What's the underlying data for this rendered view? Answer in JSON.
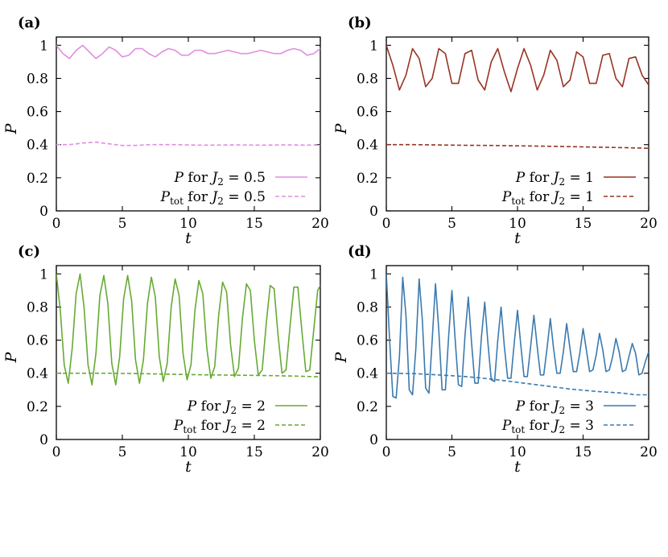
{
  "figure": {
    "panels": [
      {
        "label": "(a)",
        "legend": [
          {
            "symbol": "P",
            "sub": "",
            "text_for": "for",
            "param": "J",
            "param_sub": "2",
            "equals": "= 0.5"
          },
          {
            "symbol": "P",
            "sub": "tot",
            "text_for": "for",
            "param": "J",
            "param_sub": "2",
            "equals": "= 0.5"
          }
        ]
      },
      {
        "label": "(b)",
        "legend": [
          {
            "symbol": "P",
            "sub": "",
            "text_for": "for",
            "param": "J",
            "param_sub": "2",
            "equals": "= 1"
          },
          {
            "symbol": "P",
            "sub": "tot",
            "text_for": "for",
            "param": "J",
            "param_sub": "2",
            "equals": "= 1"
          }
        ]
      },
      {
        "label": "(c)",
        "legend": [
          {
            "symbol": "P",
            "sub": "",
            "text_for": "for",
            "param": "J",
            "param_sub": "2",
            "equals": "= 2"
          },
          {
            "symbol": "P",
            "sub": "tot",
            "text_for": "for",
            "param": "J",
            "param_sub": "2",
            "equals": "= 2"
          }
        ]
      },
      {
        "label": "(d)",
        "legend": [
          {
            "symbol": "P",
            "sub": "",
            "text_for": "for",
            "param": "J",
            "param_sub": "2",
            "equals": "= 3"
          },
          {
            "symbol": "P",
            "sub": "tot",
            "text_for": "for",
            "param": "J",
            "param_sub": "2",
            "equals": "= 3"
          }
        ]
      }
    ]
  },
  "chart_data": [
    {
      "type": "line",
      "panel": "(a)",
      "xlabel": "t",
      "ylabel": "P",
      "xlim": [
        0,
        20
      ],
      "ylim": [
        0,
        1.05
      ],
      "xticks": [
        0,
        5,
        10,
        15,
        20
      ],
      "yticks": [
        0,
        0.2,
        0.4,
        0.6,
        0.8,
        1
      ],
      "grid": false,
      "legend_position": "bottom-right",
      "series": [
        {
          "name": "P for J2 = 0.5",
          "color": "#e08ee0",
          "dash": "solid",
          "x": [
            0,
            0.5,
            1,
            1.5,
            2,
            2.5,
            3,
            3.5,
            4,
            4.5,
            5,
            5.5,
            6,
            6.5,
            7,
            7.5,
            8,
            8.5,
            9,
            9.5,
            10,
            10.5,
            11,
            11.5,
            12,
            12.5,
            13,
            13.5,
            14,
            14.5,
            15,
            15.5,
            16,
            16.5,
            17,
            17.5,
            18,
            18.5,
            19,
            19.5,
            20
          ],
          "y": [
            1.0,
            0.95,
            0.92,
            0.97,
            1.0,
            0.96,
            0.92,
            0.95,
            0.99,
            0.97,
            0.93,
            0.94,
            0.98,
            0.98,
            0.95,
            0.93,
            0.96,
            0.98,
            0.97,
            0.94,
            0.94,
            0.97,
            0.97,
            0.95,
            0.95,
            0.96,
            0.97,
            0.96,
            0.95,
            0.95,
            0.96,
            0.97,
            0.96,
            0.95,
            0.95,
            0.97,
            0.98,
            0.97,
            0.94,
            0.95,
            0.98
          ]
        },
        {
          "name": "Ptot for J2 = 0.5",
          "color": "#e08ee0",
          "dash": "dashed",
          "x": [
            0,
            1,
            2,
            3,
            4,
            5,
            6,
            7,
            8,
            9,
            10,
            11,
            12,
            13,
            14,
            15,
            16,
            17,
            18,
            19,
            20
          ],
          "y": [
            0.4,
            0.4,
            0.41,
            0.415,
            0.405,
            0.395,
            0.395,
            0.4,
            0.4,
            0.4,
            0.398,
            0.397,
            0.397,
            0.398,
            0.398,
            0.397,
            0.397,
            0.398,
            0.398,
            0.397,
            0.398
          ]
        }
      ]
    },
    {
      "type": "line",
      "panel": "(b)",
      "xlabel": "t",
      "ylabel": "P",
      "xlim": [
        0,
        20
      ],
      "ylim": [
        0,
        1.05
      ],
      "xticks": [
        0,
        5,
        10,
        15,
        20
      ],
      "yticks": [
        0,
        0.2,
        0.4,
        0.6,
        0.8,
        1
      ],
      "grid": false,
      "legend_position": "bottom-right",
      "series": [
        {
          "name": "P for J2 = 1",
          "color": "#993322",
          "dash": "solid",
          "x": [
            0,
            0.5,
            1,
            1.5,
            2,
            2.5,
            3,
            3.5,
            4,
            4.5,
            5,
            5.5,
            6,
            6.5,
            7,
            7.5,
            8,
            8.5,
            9,
            9.5,
            10,
            10.5,
            11,
            11.5,
            12,
            12.5,
            13,
            13.5,
            14,
            14.5,
            15,
            15.5,
            16,
            16.5,
            17,
            17.5,
            18,
            18.5,
            19,
            19.5,
            20
          ],
          "y": [
            1.0,
            0.88,
            0.73,
            0.82,
            0.98,
            0.92,
            0.75,
            0.8,
            0.98,
            0.95,
            0.77,
            0.77,
            0.95,
            0.97,
            0.79,
            0.73,
            0.9,
            0.98,
            0.84,
            0.72,
            0.86,
            0.98,
            0.88,
            0.73,
            0.82,
            0.97,
            0.91,
            0.75,
            0.79,
            0.96,
            0.93,
            0.77,
            0.77,
            0.94,
            0.95,
            0.8,
            0.75,
            0.92,
            0.93,
            0.82,
            0.76
          ]
        },
        {
          "name": "Ptot for J2 = 1",
          "color": "#993322",
          "dash": "dashed",
          "x": [
            0,
            2,
            4,
            6,
            8,
            10,
            12,
            14,
            16,
            18,
            20
          ],
          "y": [
            0.4,
            0.4,
            0.398,
            0.396,
            0.395,
            0.393,
            0.391,
            0.388,
            0.385,
            0.382,
            0.378
          ]
        }
      ]
    },
    {
      "type": "line",
      "panel": "(c)",
      "xlabel": "t",
      "ylabel": "P",
      "xlim": [
        0,
        20
      ],
      "ylim": [
        0,
        1.05
      ],
      "xticks": [
        0,
        5,
        10,
        15,
        20
      ],
      "yticks": [
        0,
        0.2,
        0.4,
        0.6,
        0.8,
        1
      ],
      "grid": false,
      "legend_position": "bottom-right",
      "series": [
        {
          "name": "P for J2 = 2",
          "color": "#66aa33",
          "dash": "solid",
          "x": [
            0,
            0.3,
            0.6,
            0.9,
            1.2,
            1.5,
            1.8,
            2.1,
            2.4,
            2.7,
            3.0,
            3.3,
            3.6,
            3.9,
            4.2,
            4.5,
            4.8,
            5.1,
            5.4,
            5.7,
            6.0,
            6.3,
            6.6,
            6.9,
            7.2,
            7.5,
            7.8,
            8.1,
            8.4,
            8.7,
            9.0,
            9.3,
            9.6,
            9.9,
            10.2,
            10.5,
            10.8,
            11.1,
            11.4,
            11.7,
            12.0,
            12.3,
            12.6,
            12.9,
            13.2,
            13.5,
            13.8,
            14.1,
            14.4,
            14.7,
            15.0,
            15.3,
            15.6,
            15.9,
            16.2,
            16.5,
            16.8,
            17.1,
            17.4,
            17.7,
            18.0,
            18.3,
            18.6,
            18.9,
            19.2,
            19.5,
            19.8,
            20.0
          ],
          "y": [
            1.0,
            0.78,
            0.45,
            0.34,
            0.55,
            0.88,
            1.0,
            0.8,
            0.45,
            0.33,
            0.52,
            0.87,
            0.99,
            0.82,
            0.46,
            0.33,
            0.5,
            0.85,
            0.99,
            0.84,
            0.48,
            0.34,
            0.48,
            0.82,
            0.98,
            0.86,
            0.5,
            0.35,
            0.46,
            0.8,
            0.97,
            0.87,
            0.52,
            0.36,
            0.45,
            0.78,
            0.96,
            0.88,
            0.55,
            0.37,
            0.44,
            0.75,
            0.95,
            0.89,
            0.57,
            0.38,
            0.43,
            0.73,
            0.94,
            0.9,
            0.6,
            0.39,
            0.42,
            0.7,
            0.93,
            0.91,
            0.63,
            0.4,
            0.42,
            0.68,
            0.92,
            0.92,
            0.66,
            0.41,
            0.42,
            0.66,
            0.9,
            0.93
          ]
        },
        {
          "name": "Ptot for J2 = 2",
          "color": "#66aa33",
          "dash": "dashed",
          "x": [
            0,
            2,
            4,
            6,
            8,
            10,
            12,
            14,
            16,
            18,
            20
          ],
          "y": [
            0.4,
            0.4,
            0.4,
            0.398,
            0.395,
            0.392,
            0.39,
            0.388,
            0.386,
            0.383,
            0.378
          ]
        }
      ]
    },
    {
      "type": "line",
      "panel": "(d)",
      "xlabel": "t",
      "ylabel": "P",
      "xlim": [
        0,
        20
      ],
      "ylim": [
        0,
        1.05
      ],
      "xticks": [
        0,
        5,
        10,
        15,
        20
      ],
      "yticks": [
        0,
        0.2,
        0.4,
        0.6,
        0.8,
        1
      ],
      "grid": false,
      "legend_position": "bottom-right",
      "series": [
        {
          "name": "P for J2 = 3",
          "color": "#3a7ab0",
          "dash": "solid",
          "x": [
            0,
            0.25,
            0.5,
            0.75,
            1.0,
            1.25,
            1.5,
            1.75,
            2.0,
            2.25,
            2.5,
            2.75,
            3.0,
            3.25,
            3.5,
            3.75,
            4.0,
            4.25,
            4.5,
            4.75,
            5.0,
            5.25,
            5.5,
            5.75,
            6.0,
            6.25,
            6.5,
            6.75,
            7.0,
            7.25,
            7.5,
            7.75,
            8.0,
            8.25,
            8.5,
            8.75,
            9.0,
            9.25,
            9.5,
            9.75,
            10.0,
            10.25,
            10.5,
            10.75,
            11.0,
            11.25,
            11.5,
            11.75,
            12.0,
            12.25,
            12.5,
            12.75,
            13.0,
            13.25,
            13.5,
            13.75,
            14.0,
            14.25,
            14.5,
            14.75,
            15.0,
            15.25,
            15.5,
            15.75,
            16.0,
            16.25,
            16.5,
            16.75,
            17.0,
            17.25,
            17.5,
            17.75,
            18.0,
            18.25,
            18.5,
            18.75,
            19.0,
            19.25,
            19.5,
            19.75,
            20.0
          ],
          "y": [
            1.0,
            0.6,
            0.26,
            0.25,
            0.5,
            0.98,
            0.75,
            0.3,
            0.27,
            0.55,
            0.97,
            0.72,
            0.31,
            0.28,
            0.6,
            0.94,
            0.66,
            0.3,
            0.3,
            0.62,
            0.9,
            0.6,
            0.33,
            0.32,
            0.63,
            0.86,
            0.58,
            0.34,
            0.34,
            0.62,
            0.83,
            0.58,
            0.36,
            0.35,
            0.6,
            0.8,
            0.56,
            0.37,
            0.37,
            0.58,
            0.78,
            0.57,
            0.38,
            0.38,
            0.56,
            0.75,
            0.56,
            0.39,
            0.39,
            0.55,
            0.73,
            0.55,
            0.4,
            0.4,
            0.53,
            0.7,
            0.55,
            0.41,
            0.41,
            0.52,
            0.67,
            0.54,
            0.41,
            0.42,
            0.51,
            0.64,
            0.54,
            0.41,
            0.42,
            0.5,
            0.61,
            0.53,
            0.41,
            0.42,
            0.5,
            0.58,
            0.52,
            0.39,
            0.4,
            0.47,
            0.53
          ]
        },
        {
          "name": "Ptot for J2 = 3",
          "color": "#3a7ab0",
          "dash": "dashed",
          "x": [
            0,
            2,
            4,
            6,
            8,
            10,
            12,
            14,
            16,
            18,
            19,
            20
          ],
          "y": [
            0.4,
            0.398,
            0.39,
            0.38,
            0.365,
            0.345,
            0.325,
            0.305,
            0.29,
            0.28,
            0.27,
            0.27
          ]
        }
      ]
    }
  ]
}
